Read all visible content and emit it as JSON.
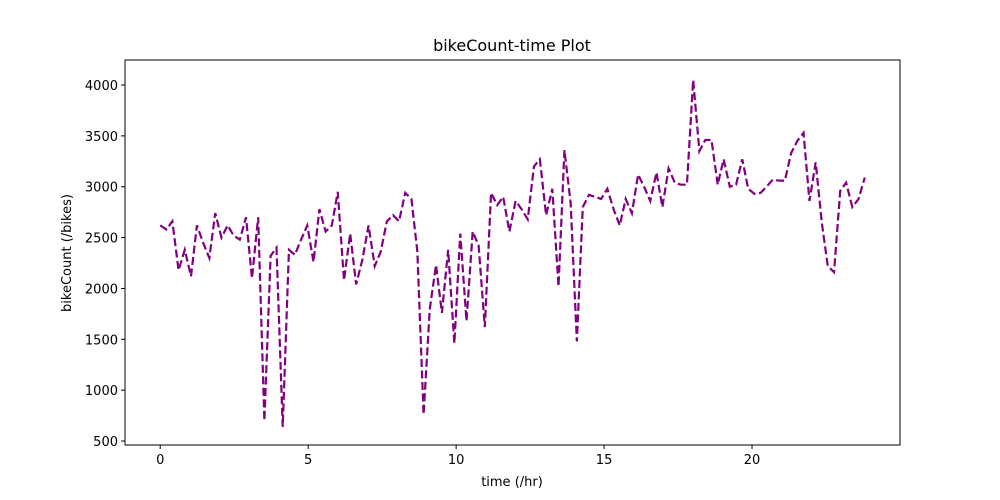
{
  "chart_data": {
    "type": "line",
    "title": "bikeCount-time Plot",
    "x_label": "time (/hr)",
    "y_label": "bikeCount (/bikes)",
    "color": "purple",
    "line_style": "dashed",
    "x": [
      0,
      0.21,
      0.41,
      0.62,
      0.83,
      1.04,
      1.24,
      1.45,
      1.66,
      1.86,
      2.07,
      2.28,
      2.48,
      2.69,
      2.9,
      3.1,
      3.31,
      3.52,
      3.73,
      3.93,
      4.14,
      4.35,
      4.55,
      4.76,
      4.97,
      5.18,
      5.38,
      5.59,
      5.8,
      6.0,
      6.21,
      6.42,
      6.62,
      6.83,
      7.04,
      7.25,
      7.45,
      7.66,
      7.87,
      8.07,
      8.28,
      8.49,
      8.69,
      8.9,
      9.11,
      9.32,
      9.52,
      9.73,
      9.94,
      10.14,
      10.35,
      10.56,
      10.76,
      10.97,
      11.18,
      11.39,
      11.59,
      11.8,
      12.01,
      12.21,
      12.42,
      12.63,
      12.83,
      13.04,
      13.25,
      13.46,
      13.66,
      13.87,
      14.08,
      14.28,
      14.49,
      14.7,
      14.9,
      15.11,
      15.32,
      15.53,
      15.73,
      15.94,
      16.15,
      16.35,
      16.56,
      16.77,
      16.97,
      17.18,
      17.39,
      17.6,
      17.8,
      18.01,
      18.22,
      18.42,
      18.63,
      18.84,
      19.04,
      19.25,
      19.46,
      19.67,
      19.87,
      20.08,
      20.29,
      20.49,
      20.7,
      20.91,
      21.11,
      21.32,
      21.53,
      21.74,
      21.94,
      22.15,
      22.36,
      22.56,
      22.77,
      22.98,
      23.18,
      23.39,
      23.6,
      23.81
    ],
    "values": [
      2620,
      2580,
      2660,
      2180,
      2380,
      2120,
      2620,
      2450,
      2300,
      2740,
      2500,
      2620,
      2520,
      2480,
      2700,
      2100,
      2700,
      700,
      2320,
      2400,
      640,
      2380,
      2330,
      2480,
      2620,
      2260,
      2780,
      2560,
      2620,
      2950,
      2080,
      2540,
      2040,
      2280,
      2620,
      2220,
      2360,
      2660,
      2720,
      2660,
      2940,
      2880,
      2360,
      760,
      1800,
      2230,
      1760,
      2380,
      1460,
      2540,
      1680,
      2560,
      2420,
      1620,
      2940,
      2820,
      2900,
      2560,
      2860,
      2780,
      2680,
      3200,
      3270,
      2720,
      2980,
      2020,
      3360,
      2840,
      1480,
      2800,
      2920,
      2900,
      2880,
      2980,
      2780,
      2620,
      2880,
      2740,
      3120,
      3000,
      2860,
      3140,
      2800,
      3180,
      3040,
      3020,
      3020,
      4050,
      3350,
      3460,
      3460,
      3020,
      3270,
      3000,
      3020,
      3270,
      2980,
      2930,
      2940,
      3000,
      3070,
      3060,
      3060,
      3330,
      3450,
      3530,
      2860,
      3240,
      2640,
      2220,
      2160,
      2960,
      3040,
      2800,
      2880,
      3090
    ],
    "xlim": [
      -1.19,
      25.0
    ],
    "ylim": [
      461,
      4246
    ],
    "xticks": [
      0,
      5,
      10,
      15,
      20
    ],
    "yticks": [
      500,
      1000,
      1500,
      2000,
      2500,
      3000,
      3500,
      4000
    ]
  }
}
